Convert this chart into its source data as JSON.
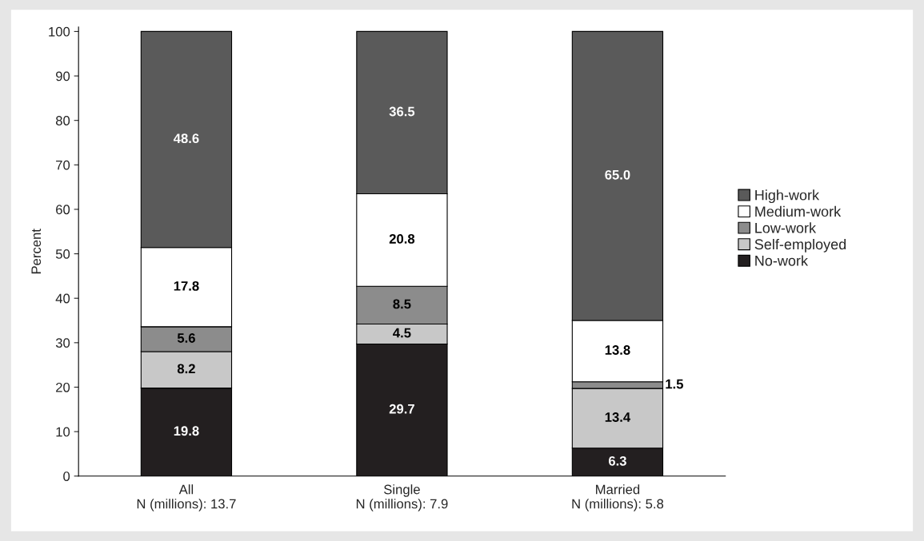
{
  "chart_data": {
    "type": "bar",
    "stacked": true,
    "ylabel": "Percent",
    "categories": [
      "All\nN (millions): 13.7",
      "Single\nN (millions): 7.9",
      "Married\nN (millions): 5.8"
    ],
    "series": [
      {
        "name": "No-work",
        "color": "#231f20",
        "values": [
          19.8,
          29.7,
          6.3
        ],
        "value_labels": [
          "19.8",
          "29.7",
          "6.3"
        ]
      },
      {
        "name": "Self-employed",
        "color": "#c8c8c8",
        "values": [
          8.2,
          4.5,
          13.4
        ],
        "value_labels": [
          "8.2",
          "4.5",
          "13.4"
        ]
      },
      {
        "name": "Low-work",
        "color": "#8c8c8c",
        "values": [
          5.6,
          8.5,
          1.5
        ],
        "value_labels": [
          "5.6",
          "8.5",
          "1.5"
        ]
      },
      {
        "name": "Medium-work",
        "color": "#ffffff",
        "values": [
          17.8,
          20.8,
          13.8
        ],
        "value_labels": [
          "17.8",
          "20.8",
          "13.8"
        ]
      },
      {
        "name": "High-work",
        "color": "#5a5a5a",
        "values": [
          48.6,
          36.5,
          65.0
        ],
        "value_labels": [
          "48.6",
          "36.5",
          "65.0"
        ]
      }
    ],
    "ylim": [
      0,
      101
    ],
    "yticks": [
      0,
      10,
      20,
      30,
      40,
      50,
      60,
      70,
      80,
      90,
      100
    ],
    "grid": false,
    "legend": "right"
  }
}
